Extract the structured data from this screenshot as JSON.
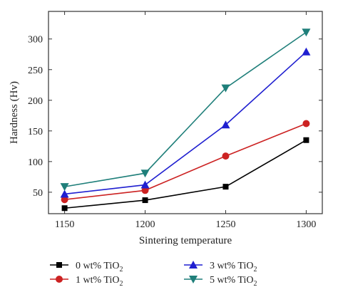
{
  "chart_data": {
    "type": "line",
    "xlabel": "Sintering temperature",
    "ylabel": "Hardness (Hv)",
    "x": [
      1150,
      1200,
      1250,
      1300
    ],
    "xlim": [
      1140,
      1310
    ],
    "ylim": [
      15,
      345
    ],
    "xticks": [
      1150,
      1200,
      1250,
      1300
    ],
    "yticks": [
      50,
      100,
      150,
      200,
      250,
      300
    ],
    "grid": false,
    "legend_position": "bottom",
    "series": [
      {
        "name": "0 wt% TiO",
        "subscript": "2",
        "color": "#000000",
        "marker": "square",
        "values": [
          24,
          37,
          59,
          135
        ]
      },
      {
        "name": "1 wt% TiO",
        "subscript": "2",
        "color": "#cc2222",
        "marker": "circle",
        "values": [
          38,
          53,
          109,
          162
        ]
      },
      {
        "name": "3 wt% TiO",
        "subscript": "2",
        "color": "#1f1fd0",
        "marker": "triangle-up",
        "values": [
          47,
          62,
          160,
          279
        ]
      },
      {
        "name": "5 wt% TiO",
        "subscript": "2",
        "color": "#1f7f7a",
        "marker": "triangle-down",
        "values": [
          59,
          81,
          220,
          311
        ]
      }
    ]
  }
}
